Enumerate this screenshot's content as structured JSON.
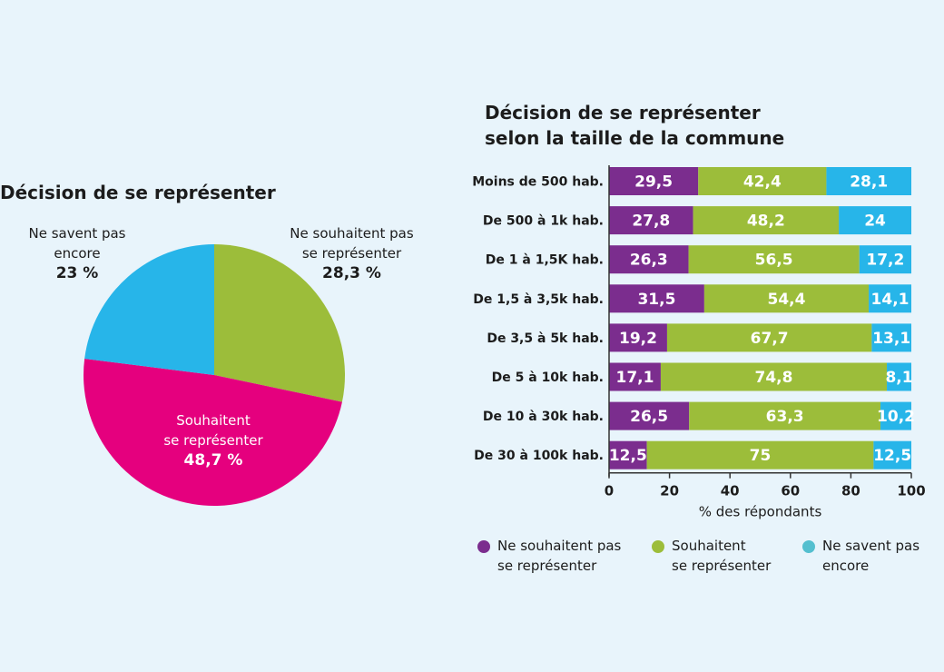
{
  "pie": {
    "title": "Décision de se représenter",
    "slices": [
      {
        "label_lines": [
          "Ne souhaitent pas",
          "se représenter"
        ],
        "pct_label": "28,3 %",
        "value": 28.3,
        "color": "#9cbd3a"
      },
      {
        "label_lines": [
          "Souhaitent",
          "se représenter"
        ],
        "pct_label": "48,7 %",
        "value": 48.7,
        "color": "#e5007e"
      },
      {
        "label_lines": [
          "Ne savent pas",
          "encore"
        ],
        "pct_label": "23 %",
        "value": 23,
        "color": "#27b5e9"
      }
    ]
  },
  "bars": {
    "title_lines": [
      "Décision de se représenter",
      "selon la taille de la commune"
    ],
    "xlabel": "% des répondants",
    "legend": [
      {
        "lines": [
          "Ne souhaitent pas",
          "se représenter"
        ],
        "color": "#7b2d8e"
      },
      {
        "lines": [
          "Souhaitent",
          "se représenter"
        ],
        "color": "#9cbd3a"
      },
      {
        "lines": [
          "Ne savent pas",
          "encore"
        ],
        "color": "#54bfcf"
      }
    ]
  },
  "chart_data": [
    {
      "type": "pie",
      "title": "Décision de se représenter",
      "categories": [
        "Ne souhaitent pas se représenter",
        "Souhaitent se représenter",
        "Ne savent pas encore"
      ],
      "values": [
        28.3,
        48.7,
        23
      ]
    },
    {
      "type": "bar",
      "stacked": true,
      "orientation": "horizontal",
      "title": "Décision de se représenter selon la taille de la commune",
      "xlabel": "% des répondants",
      "xlim": [
        0,
        100
      ],
      "xticks": [
        0,
        20,
        40,
        60,
        80,
        100
      ],
      "categories": [
        "Moins de 500 hab.",
        "De 500 à 1k hab.",
        "De 1 à 1,5K hab.",
        "De 1,5 à 3,5k hab.",
        "De 3,5 à 5k hab.",
        "De 5 à 10k hab.",
        "De 10 à 30k hab.",
        "De 30 à 100k hab."
      ],
      "series": [
        {
          "name": "Ne souhaitent pas se représenter",
          "color": "#7b2d8e",
          "values": [
            29.5,
            27.8,
            26.3,
            31.5,
            19.2,
            17.1,
            26.5,
            12.5
          ],
          "labels": [
            "29,5",
            "27,8",
            "26,3",
            "31,5",
            "19,2",
            "17,1",
            "26,5",
            "12,5"
          ]
        },
        {
          "name": "Souhaitent se représenter",
          "color": "#9cbd3a",
          "values": [
            42.4,
            48.2,
            56.5,
            54.4,
            67.7,
            74.8,
            63.3,
            75
          ],
          "labels": [
            "42,4",
            "48,2",
            "56,5",
            "54,4",
            "67,7",
            "74,8",
            "63,3",
            "75"
          ]
        },
        {
          "name": "Ne savent pas encore",
          "color": "#27b5e9",
          "values": [
            28.1,
            24,
            17.2,
            14.1,
            13.1,
            8.1,
            10.2,
            12.5
          ],
          "labels": [
            "28,1",
            "24",
            "17,2",
            "14,1",
            "13,1",
            "8,1",
            "10,2",
            "12,5"
          ]
        }
      ],
      "legend": "bottom"
    }
  ]
}
